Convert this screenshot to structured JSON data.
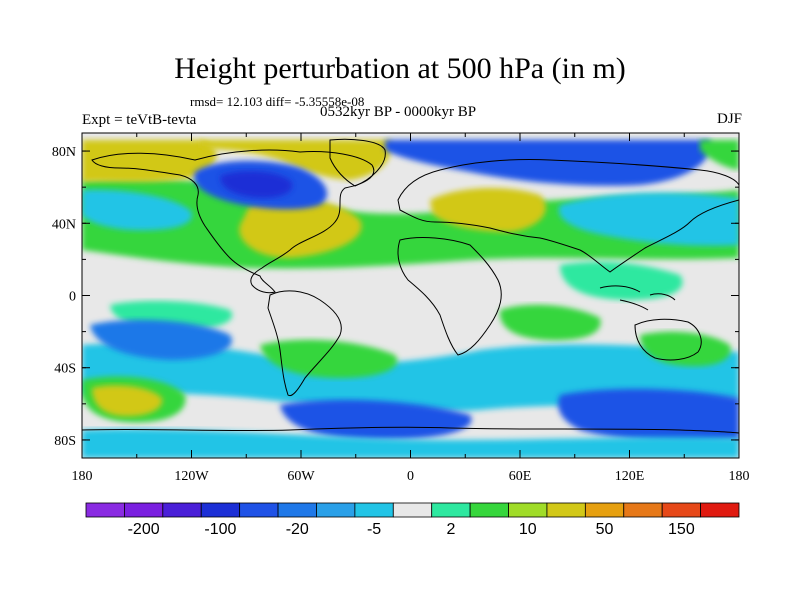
{
  "title": "Height perturbation at 500 hPa (in m)",
  "stats_line": "rmsd= 12.103 diff= -5.35558e-08",
  "experiment_label": "Expt = teVtB-tevta",
  "period_label": "0532kyr BP - 0000kyr BP",
  "season_label": "DJF",
  "x_ticks": [
    "180",
    "120W",
    "60W",
    "0",
    "60E",
    "120E",
    "180"
  ],
  "y_ticks": [
    "80N",
    "40N",
    "0",
    "40S",
    "80S"
  ],
  "colorbar": {
    "colors": [
      "#8a2be2",
      "#7a1fe0",
      "#4a1fd8",
      "#1c2fd6",
      "#1f52e6",
      "#1f78e8",
      "#2aa0e8",
      "#22c4e6",
      "#e8e8e8",
      "#2ee8a0",
      "#36d63c",
      "#a0dc28",
      "#d2c818",
      "#e6a010",
      "#e67818",
      "#e64818",
      "#e01a10"
    ],
    "labels": [
      "-200",
      "-100",
      "-20",
      "-5",
      "2",
      "10",
      "50",
      "150"
    ]
  },
  "colors": {
    "strong_negative": "#1c2fd6",
    "negative": "#1f78e8",
    "weak_negative": "#22c4e6",
    "neutral": "#e8e8e8",
    "weak_positive": "#2ee8a0",
    "positive": "#36d63c",
    "strong_positive": "#d2c818"
  }
}
